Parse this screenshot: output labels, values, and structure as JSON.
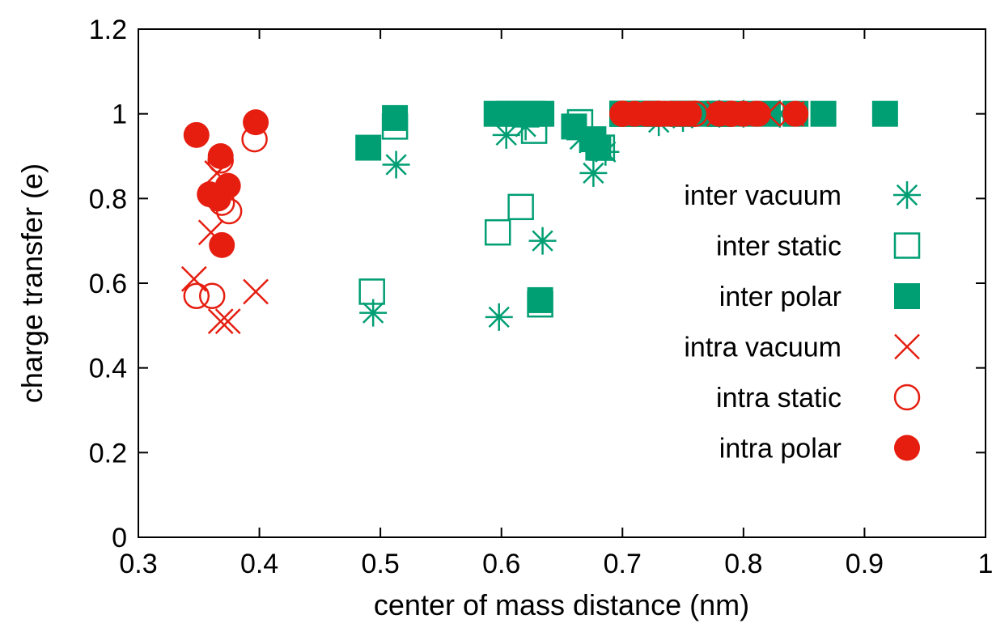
{
  "chart_data": {
    "type": "scatter",
    "xlabel": "center of mass distance (nm)",
    "ylabel": "charge transfer (e)",
    "xlim": [
      0.3,
      1.0
    ],
    "ylim": [
      0,
      1.2
    ],
    "x_ticks": [
      "0.3",
      "0.4",
      "0.5",
      "0.6",
      "0.7",
      "0.8",
      "0.9",
      "1"
    ],
    "y_ticks": [
      "0",
      "0.2",
      "0.4",
      "0.6",
      "0.8",
      "1",
      "1.2"
    ],
    "grid": false,
    "legend_position": "right",
    "colors": {
      "inter": "#009e73",
      "intra": "#e51e10"
    },
    "series": [
      {
        "name": "inter vacuum",
        "marker": "asterisk",
        "color": "#009e73",
        "points": [
          [
            0.494,
            0.53
          ],
          [
            0.513,
            0.88
          ],
          [
            0.598,
            0.52
          ],
          [
            0.604,
            0.95
          ],
          [
            0.62,
            0.97
          ],
          [
            0.634,
            0.7
          ],
          [
            0.665,
            0.94
          ],
          [
            0.676,
            0.86
          ],
          [
            0.686,
            0.91
          ],
          [
            0.73,
            0.98
          ],
          [
            0.75,
            0.99
          ],
          [
            0.78,
            1.0
          ],
          [
            0.8,
            1.0
          ],
          [
            0.83,
            1.0
          ]
        ]
      },
      {
        "name": "inter static",
        "marker": "open-square",
        "color": "#009e73",
        "points": [
          [
            0.493,
            0.58
          ],
          [
            0.512,
            0.97
          ],
          [
            0.597,
            0.72
          ],
          [
            0.616,
            0.78
          ],
          [
            0.627,
            0.96
          ],
          [
            0.632,
            0.55
          ],
          [
            0.665,
            0.98
          ],
          [
            0.683,
            0.92
          ],
          [
            0.7,
            1.0
          ],
          [
            0.72,
            1.0
          ],
          [
            0.75,
            1.0
          ],
          [
            0.78,
            1.0
          ]
        ]
      },
      {
        "name": "inter polar",
        "marker": "filled-square",
        "color": "#009e73",
        "points": [
          [
            0.49,
            0.92
          ],
          [
            0.512,
            0.99
          ],
          [
            0.596,
            1.0
          ],
          [
            0.606,
            1.0
          ],
          [
            0.614,
            1.0
          ],
          [
            0.626,
            1.0
          ],
          [
            0.633,
            1.0
          ],
          [
            0.632,
            0.56
          ],
          [
            0.66,
            0.97
          ],
          [
            0.676,
            0.94
          ],
          [
            0.68,
            0.92
          ],
          [
            0.7,
            1.0
          ],
          [
            0.72,
            1.0
          ],
          [
            0.74,
            1.0
          ],
          [
            0.76,
            1.0
          ],
          [
            0.78,
            1.0
          ],
          [
            0.8,
            1.0
          ],
          [
            0.82,
            1.0
          ],
          [
            0.843,
            1.0
          ],
          [
            0.866,
            1.0
          ],
          [
            0.917,
            1.0
          ]
        ]
      },
      {
        "name": "intra vacuum",
        "marker": "cross",
        "color": "#e51e10",
        "points": [
          [
            0.346,
            0.61
          ],
          [
            0.36,
            0.72
          ],
          [
            0.365,
            0.86
          ],
          [
            0.368,
            0.51
          ],
          [
            0.374,
            0.51
          ],
          [
            0.397,
            0.58
          ],
          [
            0.72,
            1.0
          ],
          [
            0.75,
            1.0
          ],
          [
            0.78,
            1.0
          ],
          [
            0.8,
            1.0
          ],
          [
            0.82,
            1.0
          ],
          [
            0.84,
            1.0
          ]
        ]
      },
      {
        "name": "intra static",
        "marker": "open-circle",
        "color": "#e51e10",
        "points": [
          [
            0.348,
            0.57
          ],
          [
            0.361,
            0.57
          ],
          [
            0.368,
            0.89
          ],
          [
            0.369,
            0.79
          ],
          [
            0.375,
            0.77
          ],
          [
            0.396,
            0.94
          ],
          [
            0.7,
            1.0
          ],
          [
            0.73,
            1.0
          ],
          [
            0.76,
            1.0
          ],
          [
            0.79,
            1.0
          ]
        ]
      },
      {
        "name": "intra polar",
        "marker": "filled-circle",
        "color": "#e51e10",
        "points": [
          [
            0.348,
            0.95
          ],
          [
            0.359,
            0.81
          ],
          [
            0.366,
            0.8
          ],
          [
            0.368,
            0.9
          ],
          [
            0.369,
            0.69
          ],
          [
            0.374,
            0.83
          ],
          [
            0.397,
            0.98
          ],
          [
            0.7,
            1.0
          ],
          [
            0.71,
            1.0
          ],
          [
            0.72,
            1.0
          ],
          [
            0.725,
            1.0
          ],
          [
            0.73,
            1.0
          ],
          [
            0.735,
            1.0
          ],
          [
            0.74,
            1.0
          ],
          [
            0.745,
            1.0
          ],
          [
            0.75,
            1.0
          ],
          [
            0.755,
            1.0
          ],
          [
            0.78,
            1.0
          ],
          [
            0.79,
            1.0
          ],
          [
            0.8,
            1.0
          ],
          [
            0.81,
            1.0
          ],
          [
            0.812,
            1.0
          ],
          [
            0.843,
            1.0
          ]
        ]
      }
    ]
  }
}
